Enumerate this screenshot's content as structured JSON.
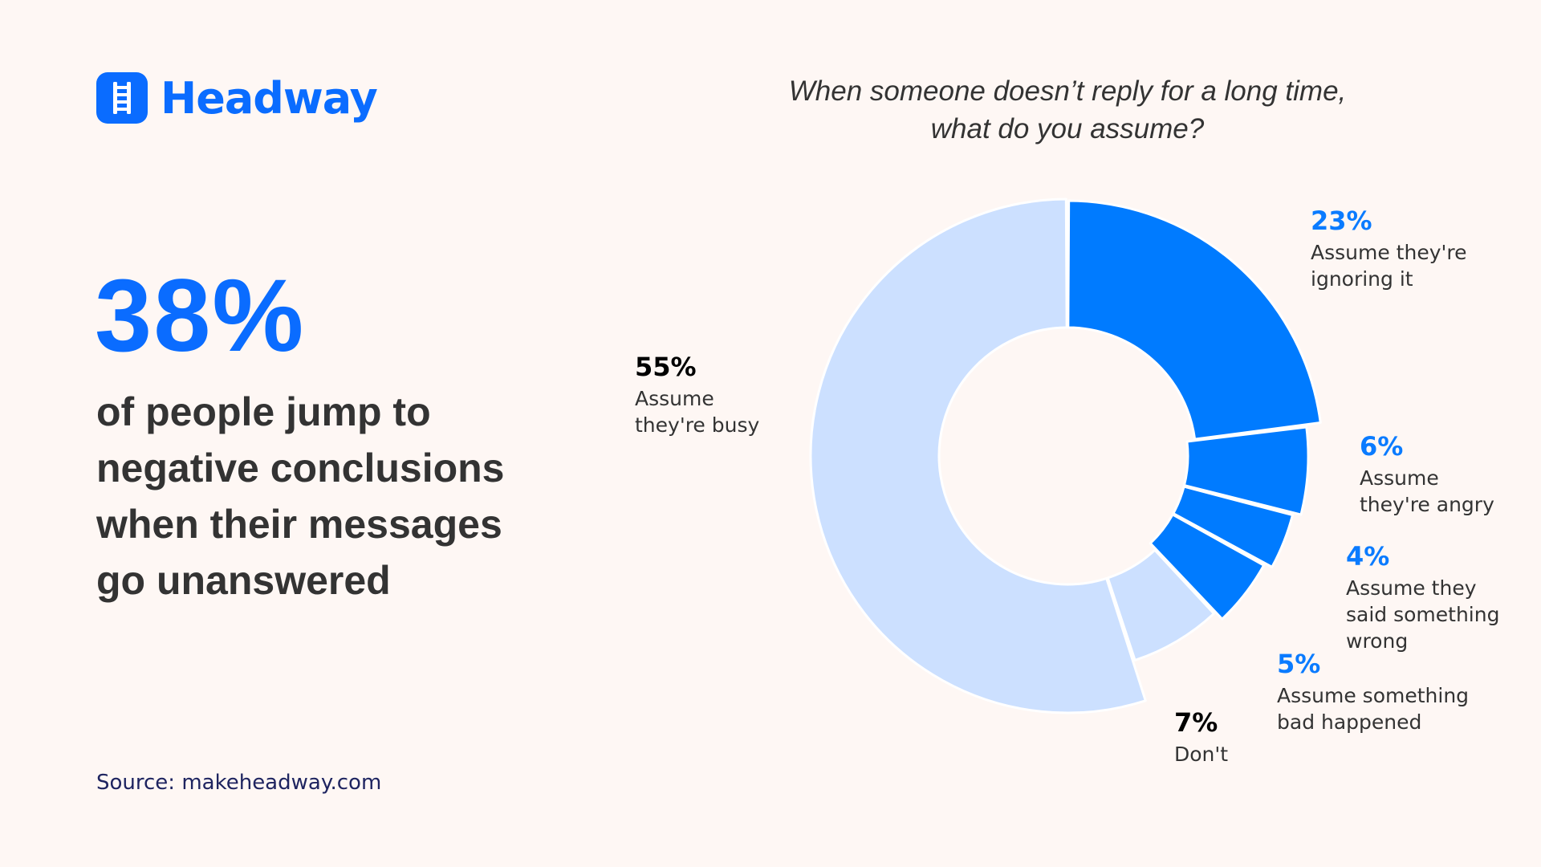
{
  "brand": {
    "name": "Headway",
    "icon": "ladder-icon",
    "color": "#0A6CFF"
  },
  "hero": {
    "stat": "38%",
    "lines": [
      "of people jump to",
      "negative conclusions",
      "when their messages",
      "go unanswered"
    ]
  },
  "source": "Source: makeheadway.com",
  "question": {
    "line1": "When someone doesn’t reply for a long time,",
    "line2": "what do you assume?"
  },
  "colors": {
    "background": "#FEF7F4",
    "highlight": "#007BFF",
    "muted": "#CCE0FF",
    "text": "#333333"
  },
  "labels": [
    {
      "pct": "23%",
      "line1": "Assume they're",
      "line2": "ignoring it",
      "line3": ""
    },
    {
      "pct": "6%",
      "line1": "Assume",
      "line2": "they're angry",
      "line3": ""
    },
    {
      "pct": "4%",
      "line1": "Assume they",
      "line2": "said something",
      "line3": "wrong"
    },
    {
      "pct": "5%",
      "line1": "Assume something",
      "line2": "bad happened",
      "line3": ""
    },
    {
      "pct": "7%",
      "line1": "Don't",
      "line2": "",
      "line3": ""
    },
    {
      "pct": "55%",
      "line1": "Assume",
      "line2": "they're busy",
      "line3": ""
    }
  ],
  "chart_data": {
    "type": "pie",
    "variant": "donut",
    "title": "When someone doesn’t reply for a long time, what do you assume?",
    "categories": [
      "Assume they're ignoring it",
      "Assume they're angry",
      "Assume they said something wrong",
      "Assume something bad happened",
      "Don't",
      "Assume they're busy"
    ],
    "values": [
      23,
      6,
      4,
      5,
      7,
      55
    ],
    "unit": "%",
    "highlighted": [
      true,
      true,
      true,
      true,
      false,
      false
    ],
    "start_angle": "12 o'clock, clockwise",
    "legend": "none (direct labels)"
  }
}
